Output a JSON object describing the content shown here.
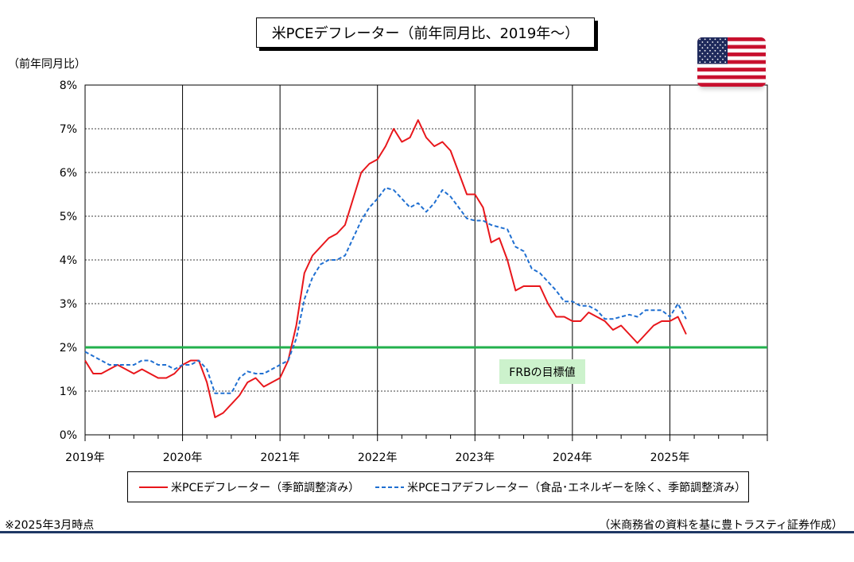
{
  "title": "米PCEデフレーター（前年同月比、2019年～）",
  "y_unit_label": "（前年同月比）",
  "flag_icon": "us-flag-icon",
  "target_label": "FRBの目標値",
  "note_left": "※2025年3月時点",
  "note_right": "（米商務省の資料を基に豊トラスティ証券作成）",
  "legend": {
    "pce_label": "米PCEデフレーター（季節調整済み）",
    "core_label": "米PCEコアデフレーター（食品･エネルギーを除く、季節調整済み）"
  },
  "chart_data": {
    "type": "line",
    "title": "米PCEデフレーター（前年同月比、2019年～）",
    "ylabel": "（前年同月比）",
    "ylim": [
      0,
      8
    ],
    "y_ticks": [
      "0%",
      "1%",
      "2%",
      "3%",
      "4%",
      "5%",
      "6%",
      "7%",
      "8%"
    ],
    "x_tick_labels": [
      "2019年",
      "2020年",
      "2021年",
      "2022年",
      "2023年",
      "2024年",
      "2025年"
    ],
    "x_start": "2019-01",
    "x_end": "2026-01",
    "grid": true,
    "legend_position": "bottom",
    "reference_line": {
      "value": 2.0,
      "label": "FRBの目標値",
      "color": "#22b14c"
    },
    "series": [
      {
        "name": "米PCEデフレーター（季節調整済み）",
        "color": "#e8161b",
        "style": "solid",
        "start": "2019-01",
        "values": [
          1.7,
          1.4,
          1.4,
          1.5,
          1.6,
          1.5,
          1.4,
          1.5,
          1.4,
          1.3,
          1.3,
          1.4,
          1.6,
          1.7,
          1.7,
          1.2,
          0.4,
          0.5,
          0.7,
          0.9,
          1.2,
          1.3,
          1.1,
          1.2,
          1.3,
          1.7,
          2.5,
          3.7,
          4.1,
          4.3,
          4.5,
          4.6,
          4.8,
          5.4,
          6.0,
          6.2,
          6.3,
          6.6,
          7.0,
          6.7,
          6.8,
          7.2,
          6.8,
          6.6,
          6.7,
          6.5,
          6.0,
          5.5,
          5.5,
          5.2,
          4.4,
          4.5,
          4.0,
          3.3,
          3.4,
          3.4,
          3.4,
          3.0,
          2.7,
          2.7,
          2.6,
          2.6,
          2.8,
          2.7,
          2.6,
          2.4,
          2.5,
          2.3,
          2.1,
          2.3,
          2.5,
          2.6,
          2.6,
          2.7,
          2.3
        ]
      },
      {
        "name": "米PCEコアデフレーター（食品･エネルギーを除く、季節調整済み）",
        "color": "#1f6fd1",
        "style": "dashed",
        "start": "2019-01",
        "values": [
          1.9,
          1.8,
          1.7,
          1.6,
          1.6,
          1.6,
          1.6,
          1.7,
          1.7,
          1.6,
          1.6,
          1.5,
          1.6,
          1.6,
          1.7,
          1.5,
          0.95,
          0.95,
          0.95,
          1.3,
          1.45,
          1.4,
          1.4,
          1.5,
          1.6,
          1.7,
          2.2,
          3.1,
          3.6,
          3.9,
          4.0,
          4.0,
          4.1,
          4.5,
          4.9,
          5.2,
          5.4,
          5.65,
          5.6,
          5.4,
          5.2,
          5.3,
          5.1,
          5.3,
          5.6,
          5.45,
          5.2,
          4.95,
          4.9,
          4.9,
          4.8,
          4.75,
          4.7,
          4.3,
          4.2,
          3.8,
          3.7,
          3.5,
          3.3,
          3.05,
          3.05,
          2.95,
          2.95,
          2.85,
          2.65,
          2.65,
          2.7,
          2.75,
          2.7,
          2.85,
          2.85,
          2.85,
          2.7,
          3.0,
          2.65
        ]
      }
    ]
  }
}
